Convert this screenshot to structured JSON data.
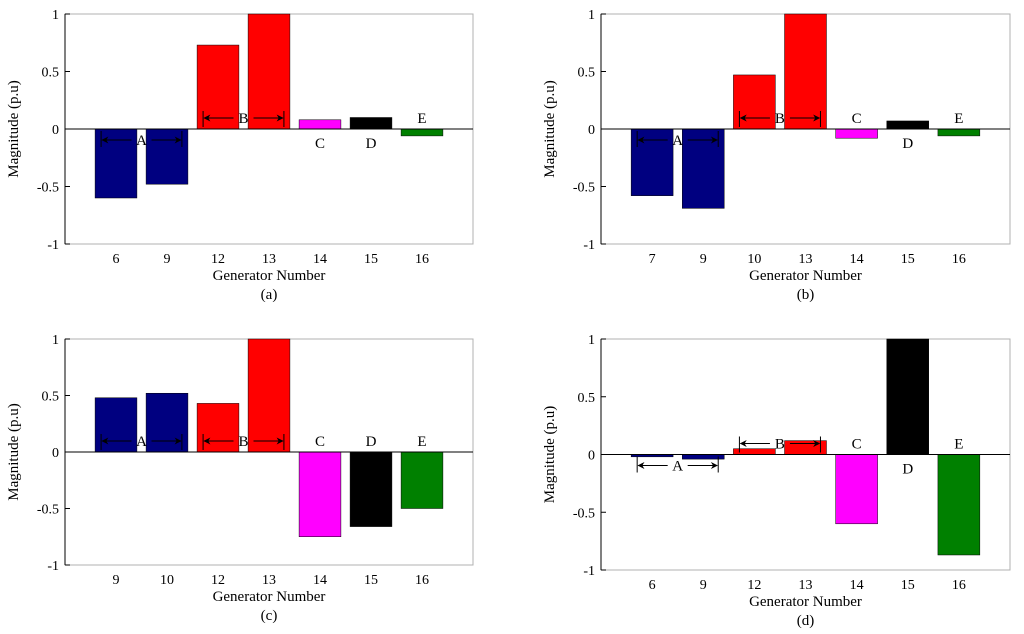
{
  "figure": {
    "background": "#ffffff"
  },
  "chart_data": [
    {
      "type": "bar",
      "caption": "(a)",
      "xlabel": "Generator Number",
      "ylabel": "Magnitude (p.u)",
      "ylim": [
        -1,
        1
      ],
      "yticks": [
        "-1",
        "-0.5",
        "0",
        "0.5",
        "1"
      ],
      "categories": [
        "6",
        "9",
        "12",
        "13",
        "14",
        "15",
        "16"
      ],
      "values": [
        -0.6,
        -0.48,
        0.73,
        1.0,
        0.08,
        0.1,
        -0.06
      ],
      "colors": [
        "#000080",
        "#000080",
        "#ff0000",
        "#ff0000",
        "#ff00ff",
        "#000000",
        "#008000"
      ],
      "groups": [
        {
          "label": "A",
          "from": 0,
          "to": 1,
          "side": "below-zero"
        },
        {
          "label": "B",
          "from": 2,
          "to": 3,
          "side": "above-zero"
        },
        {
          "label": "C",
          "at": 4
        },
        {
          "label": "D",
          "at": 5
        },
        {
          "label": "E",
          "at": 6
        }
      ]
    },
    {
      "type": "bar",
      "caption": "(b)",
      "xlabel": "Generator Number",
      "ylabel": "Magnitude (p.u)",
      "ylim": [
        -1,
        1
      ],
      "yticks": [
        "-1",
        "-0.5",
        "0",
        "0.5",
        "1"
      ],
      "categories": [
        "7",
        "9",
        "10",
        "13",
        "14",
        "15",
        "16"
      ],
      "values": [
        -0.58,
        -0.69,
        0.47,
        1.0,
        -0.08,
        0.07,
        -0.06
      ],
      "colors": [
        "#000080",
        "#000080",
        "#ff0000",
        "#ff0000",
        "#ff00ff",
        "#000000",
        "#008000"
      ],
      "groups": [
        {
          "label": "A",
          "from": 0,
          "to": 1,
          "side": "below-zero"
        },
        {
          "label": "B",
          "from": 2,
          "to": 3,
          "side": "above-zero"
        },
        {
          "label": "C",
          "at": 4
        },
        {
          "label": "D",
          "at": 5
        },
        {
          "label": "E",
          "at": 6
        }
      ]
    },
    {
      "type": "bar",
      "caption": "(c)",
      "xlabel": "Generator Number",
      "ylabel": "Magnitude (p.u)",
      "ylim": [
        -1,
        1
      ],
      "yticks": [
        "-1",
        "-0.5",
        "0",
        "0.5",
        "1"
      ],
      "categories": [
        "9",
        "10",
        "12",
        "13",
        "14",
        "15",
        "16"
      ],
      "values": [
        0.48,
        0.52,
        0.43,
        1.0,
        -0.75,
        -0.66,
        -0.5
      ],
      "colors": [
        "#000080",
        "#000080",
        "#ff0000",
        "#ff0000",
        "#ff00ff",
        "#000000",
        "#008000"
      ],
      "groups": [
        {
          "label": "A",
          "from": 0,
          "to": 1,
          "side": "above-zero"
        },
        {
          "label": "B",
          "from": 2,
          "to": 3,
          "side": "above-zero"
        },
        {
          "label": "C",
          "at": 4
        },
        {
          "label": "D",
          "at": 5
        },
        {
          "label": "E",
          "at": 6
        }
      ]
    },
    {
      "type": "bar",
      "caption": "(d)",
      "xlabel": "Generator Number",
      "ylabel": "Magnitude (p.u)",
      "ylim": [
        -1,
        1
      ],
      "yticks": [
        "-1",
        "-0.5",
        "0",
        "0.5",
        "1"
      ],
      "categories": [
        "6",
        "9",
        "12",
        "13",
        "14",
        "15",
        "16"
      ],
      "values": [
        -0.02,
        -0.04,
        0.05,
        0.12,
        -0.6,
        1.0,
        -0.87
      ],
      "colors": [
        "#000080",
        "#000080",
        "#ff0000",
        "#ff0000",
        "#ff00ff",
        "#000000",
        "#008000"
      ],
      "groups": [
        {
          "label": "A",
          "from": 0,
          "to": 1,
          "side": "below-zero"
        },
        {
          "label": "B",
          "from": 2,
          "to": 3,
          "side": "above-zero"
        },
        {
          "label": "C",
          "at": 4
        },
        {
          "label": "D",
          "at": 5
        },
        {
          "label": "E",
          "at": 6
        }
      ]
    }
  ]
}
